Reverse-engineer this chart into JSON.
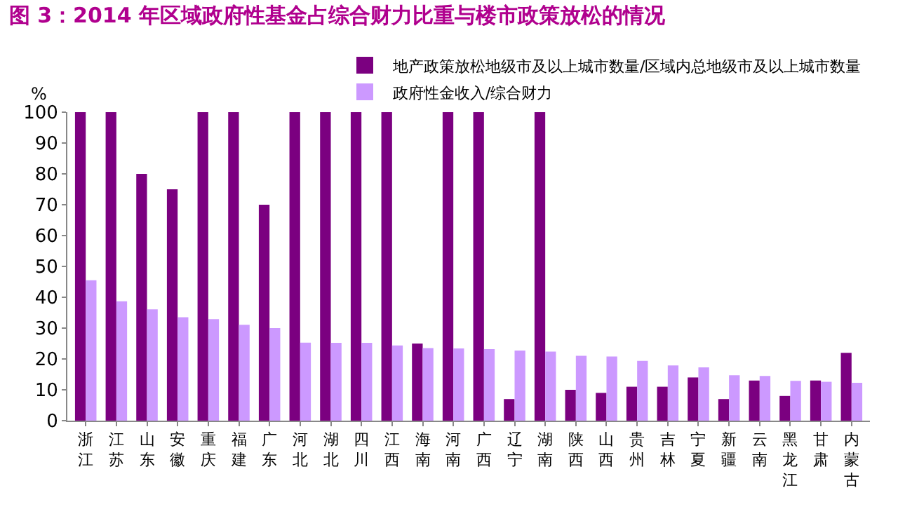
{
  "chart_data": {
    "type": "bar",
    "title": "图 3：2014 年区域政府性基金占综合财力比重与楼市政策放松的情况",
    "ylabel": "%",
    "categories": [
      "浙江",
      "江苏",
      "山东",
      "安徽",
      "重庆",
      "福建",
      "广东",
      "河北",
      "湖北",
      "四川",
      "江西",
      "海南",
      "河南",
      "广西",
      "辽宁",
      "湖南",
      "陕西",
      "山西",
      "贵州",
      "吉林",
      "宁夏",
      "新疆",
      "云南",
      "黑龙江",
      "甘肃",
      "内蒙古"
    ],
    "series": [
      {
        "name": "地产政策放松地级市及以上城市数量/区域内总地级市及以上城市数量",
        "color": "#7b0080",
        "values": [
          100,
          100,
          80,
          75,
          100,
          100,
          70,
          100,
          100,
          100,
          100,
          25,
          100,
          100,
          7,
          100,
          10,
          9,
          11,
          11,
          14,
          7,
          13,
          8,
          13,
          22
        ]
      },
      {
        "name": "政府性金收入/综合财力",
        "color": "#cc99ff",
        "values": [
          45.5,
          38.7,
          36.1,
          33.5,
          32.9,
          31.1,
          30,
          25.3,
          25.2,
          25.2,
          24.4,
          23.5,
          23.4,
          23.2,
          22.7,
          22.4,
          21,
          20.8,
          19.4,
          17.9,
          17.3,
          14.7,
          14.5,
          12.9,
          12.6,
          12.3
        ]
      }
    ],
    "ylim": [
      0,
      100
    ],
    "yticks": [
      0,
      10,
      20,
      30,
      40,
      50,
      60,
      70,
      80,
      90,
      100
    ],
    "legend": "top right"
  }
}
